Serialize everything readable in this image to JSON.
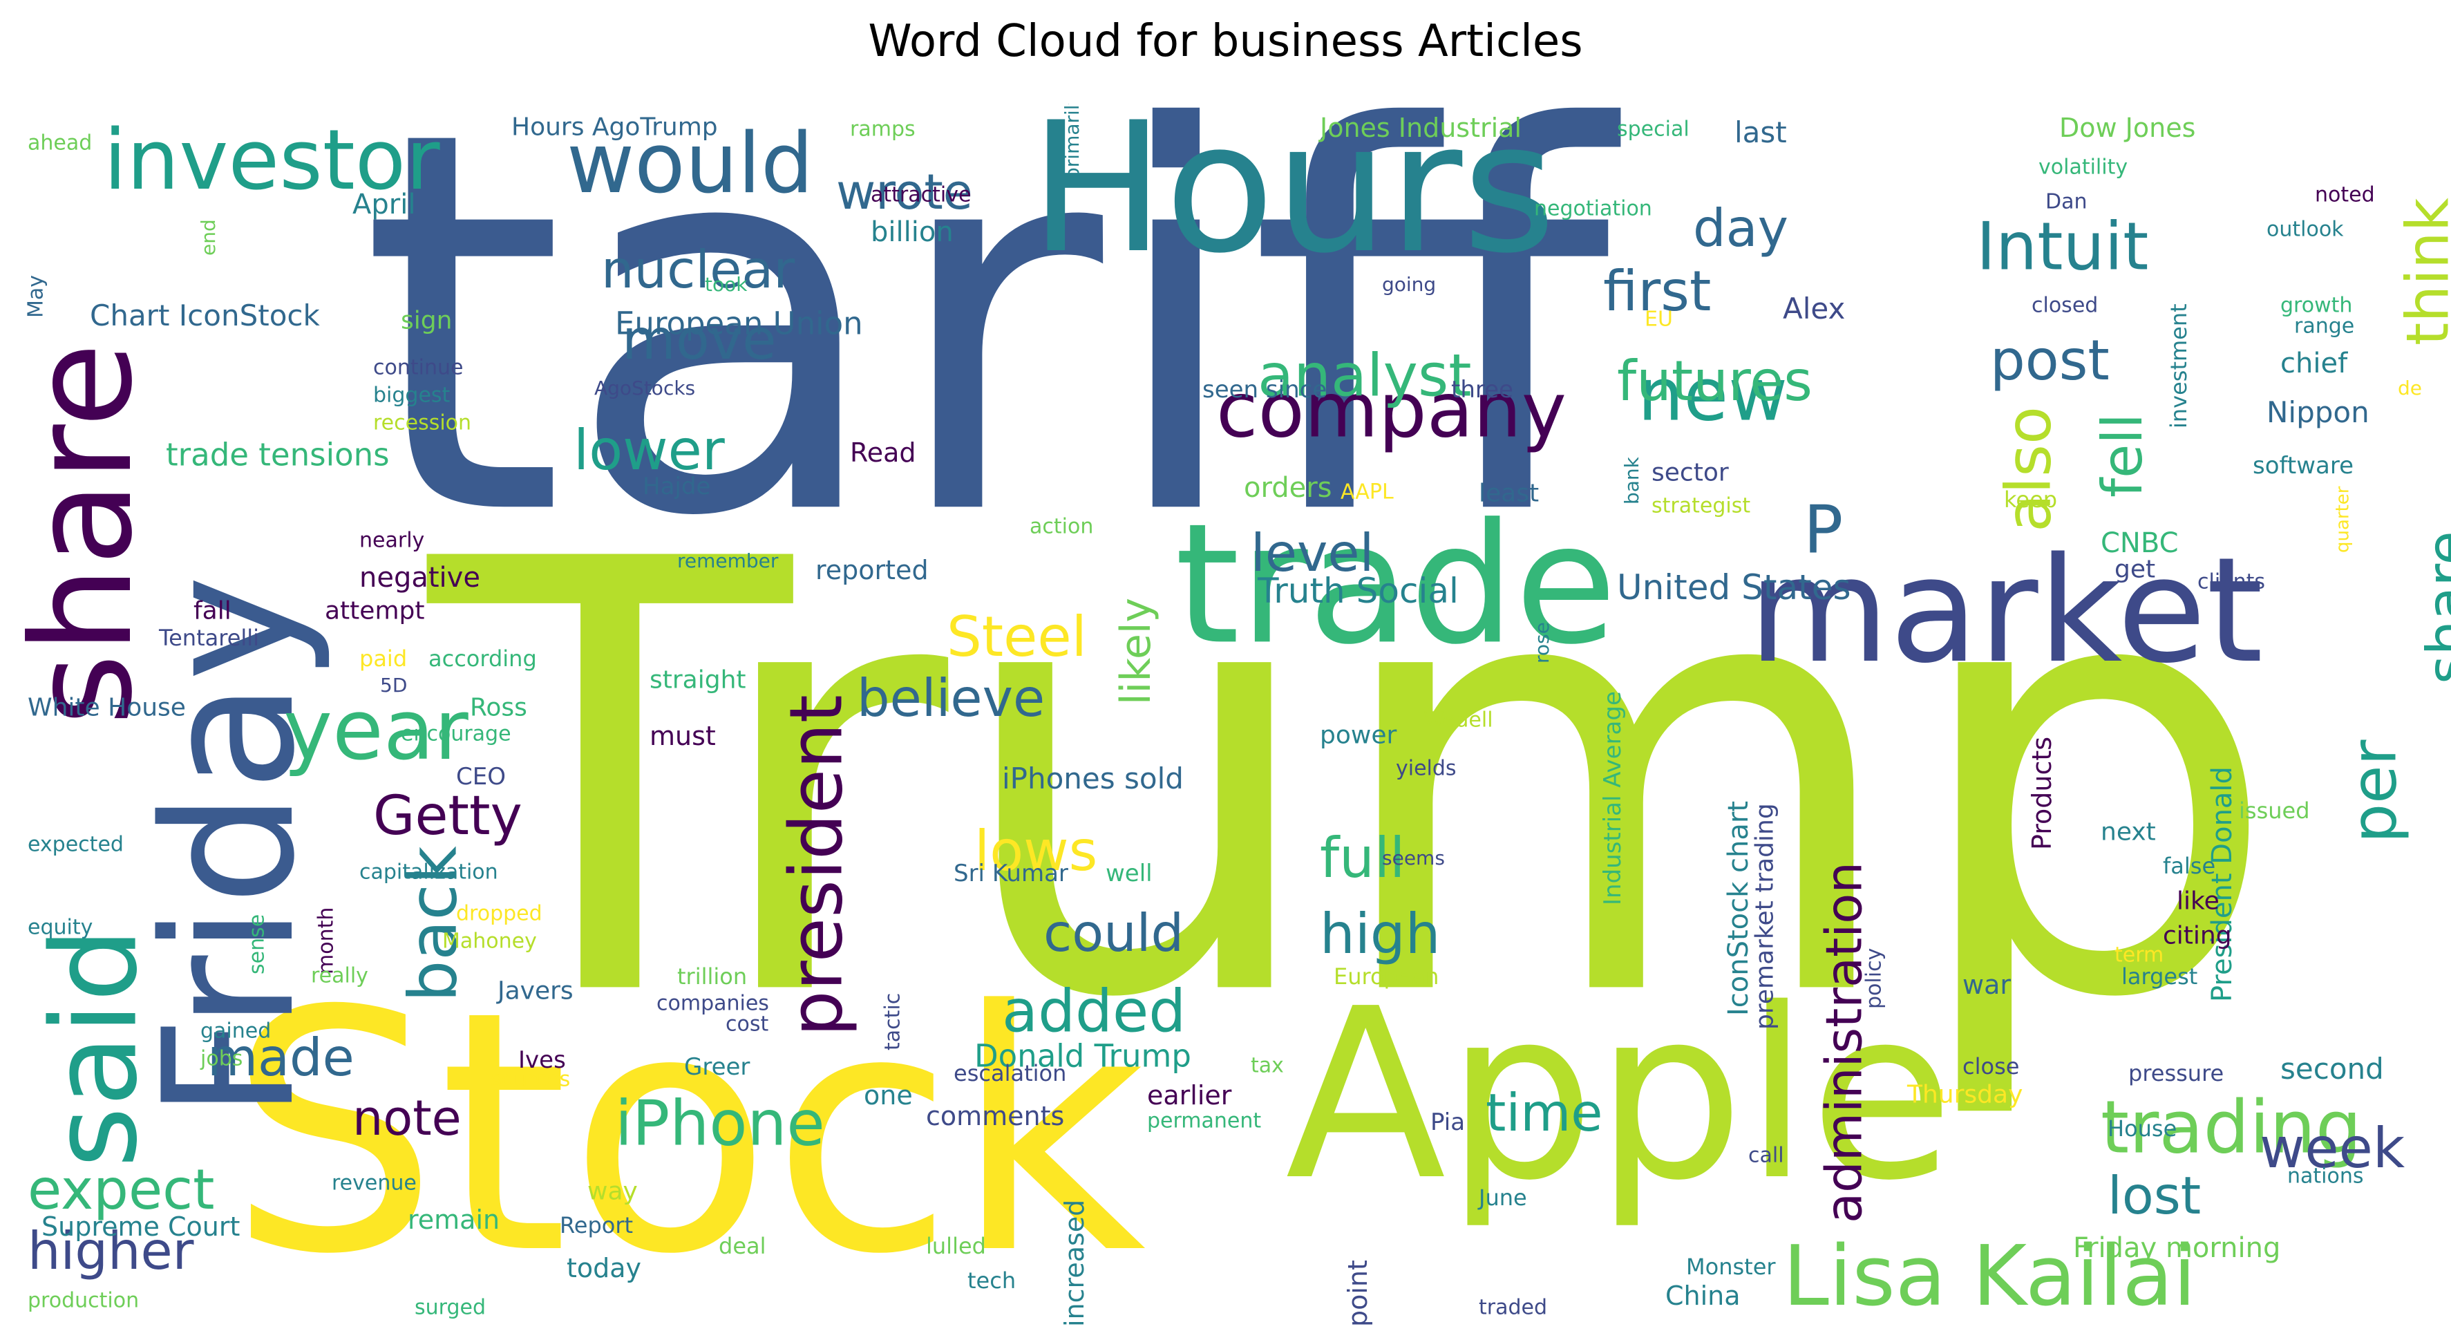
{
  "title": "Word Cloud for business Articles",
  "palette": {
    "dark_purple": "#440154",
    "indigo": "#3e4a89",
    "blue": "#31688e",
    "steel": "#3b5b8f",
    "teal": "#26828e",
    "teal_green": "#1f9e89",
    "green": "#35b779",
    "light_green": "#6ece58",
    "lime": "#b5de2b",
    "yellow": "#fde725"
  },
  "words": [
    {
      "text": "tariff",
      "color": "steel"
    },
    {
      "text": "Trump",
      "color": "lime"
    },
    {
      "text": "Stock",
      "color": "yellow"
    },
    {
      "text": "Apple",
      "color": "lime"
    },
    {
      "text": "Hours",
      "color": "teal"
    },
    {
      "text": "trade",
      "color": "green"
    },
    {
      "text": "market",
      "color": "indigo"
    },
    {
      "text": "Friday",
      "color": "steel"
    },
    {
      "text": "share",
      "color": "dark_purple"
    },
    {
      "text": "said",
      "color": "teal_green"
    },
    {
      "text": "investor",
      "color": "teal_green"
    },
    {
      "text": "would",
      "color": "blue"
    },
    {
      "text": "company",
      "color": "dark_purple"
    },
    {
      "text": "Lisa Kailai",
      "color": "light_green"
    },
    {
      "text": "trading",
      "color": "light_green"
    },
    {
      "text": "president",
      "color": "dark_purple"
    },
    {
      "text": "administration",
      "color": "dark_purple"
    },
    {
      "text": "year",
      "color": "green"
    },
    {
      "text": "Getty",
      "color": "dark_purple"
    },
    {
      "text": "back",
      "color": "teal"
    },
    {
      "text": "iPhone",
      "color": "green"
    },
    {
      "text": "new",
      "color": "teal_green"
    },
    {
      "text": "Intuit",
      "color": "teal"
    },
    {
      "text": "post",
      "color": "blue"
    },
    {
      "text": "also",
      "color": "lime"
    },
    {
      "text": "fell",
      "color": "green"
    },
    {
      "text": "think",
      "color": "lime"
    },
    {
      "text": "per",
      "color": "teal_green"
    },
    {
      "text": "share",
      "color": "teal_green"
    },
    {
      "text": "P",
      "color": "blue"
    },
    {
      "text": "nuclear",
      "color": "blue"
    },
    {
      "text": "wrote",
      "color": "blue"
    },
    {
      "text": "day",
      "color": "blue"
    },
    {
      "text": "first",
      "color": "blue"
    },
    {
      "text": "move",
      "color": "blue"
    },
    {
      "text": "analyst",
      "color": "green"
    },
    {
      "text": "futures",
      "color": "green"
    },
    {
      "text": "lower",
      "color": "teal_green"
    },
    {
      "text": "level",
      "color": "blue"
    },
    {
      "text": "Steel",
      "color": "yellow"
    },
    {
      "text": "believe",
      "color": "blue"
    },
    {
      "text": "lows",
      "color": "yellow"
    },
    {
      "text": "full",
      "color": "green"
    },
    {
      "text": "high",
      "color": "teal"
    },
    {
      "text": "could",
      "color": "blue"
    },
    {
      "text": "added",
      "color": "teal_green"
    },
    {
      "text": "made",
      "color": "blue"
    },
    {
      "text": "note",
      "color": "dark_purple"
    },
    {
      "text": "expect",
      "color": "green"
    },
    {
      "text": "higher",
      "color": "indigo"
    },
    {
      "text": "time",
      "color": "teal_green"
    },
    {
      "text": "week",
      "color": "indigo"
    },
    {
      "text": "lost",
      "color": "teal"
    },
    {
      "text": "likely",
      "color": "light_green"
    },
    {
      "text": "Truth Social",
      "color": "teal"
    },
    {
      "text": "United States",
      "color": "blue"
    },
    {
      "text": "Donald Trump",
      "color": "teal_green"
    },
    {
      "text": "European Union",
      "color": "blue"
    },
    {
      "text": "Chart IconStock",
      "color": "blue"
    },
    {
      "text": "trade tensions",
      "color": "green"
    },
    {
      "text": "Hours AgoTrump",
      "color": "blue"
    },
    {
      "text": "Jones Industrial",
      "color": "light_green"
    },
    {
      "text": "Dow Jones",
      "color": "light_green"
    },
    {
      "text": "last",
      "color": "blue"
    },
    {
      "text": "April",
      "color": "teal"
    },
    {
      "text": "billion",
      "color": "teal"
    },
    {
      "text": "attractive",
      "color": "dark_purple"
    },
    {
      "text": "ahead",
      "color": "light_green"
    },
    {
      "text": "ramps",
      "color": "light_green"
    },
    {
      "text": "special",
      "color": "green"
    },
    {
      "text": "negotiation",
      "color": "green"
    },
    {
      "text": "volatility",
      "color": "green"
    },
    {
      "text": "noted",
      "color": "dark_purple"
    },
    {
      "text": "outlook",
      "color": "teal"
    },
    {
      "text": "Dan",
      "color": "indigo"
    },
    {
      "text": "primarily",
      "color": "teal"
    },
    {
      "text": "took",
      "color": "green"
    },
    {
      "text": "going",
      "color": "indigo"
    },
    {
      "text": "EU",
      "color": "yellow"
    },
    {
      "text": "Alex",
      "color": "indigo"
    },
    {
      "text": "closed",
      "color": "indigo"
    },
    {
      "text": "growth",
      "color": "green"
    },
    {
      "text": "range",
      "color": "teal"
    },
    {
      "text": "chief",
      "color": "teal"
    },
    {
      "text": "Nippon",
      "color": "blue"
    },
    {
      "text": "software",
      "color": "teal"
    },
    {
      "text": "investment",
      "color": "teal"
    },
    {
      "text": "de",
      "color": "yellow"
    },
    {
      "text": "May",
      "color": "blue"
    },
    {
      "text": "end",
      "color": "light_green"
    },
    {
      "text": "sign",
      "color": "light_green"
    },
    {
      "text": "continue",
      "color": "indigo"
    },
    {
      "text": "biggest",
      "color": "teal"
    },
    {
      "text": "recession",
      "color": "lime"
    },
    {
      "text": "AgoStocks",
      "color": "indigo"
    },
    {
      "text": "Read",
      "color": "dark_purple"
    },
    {
      "text": "Hajde",
      "color": "blue"
    },
    {
      "text": "seen since",
      "color": "blue"
    },
    {
      "text": "three",
      "color": "indigo"
    },
    {
      "text": "orders",
      "color": "light_green"
    },
    {
      "text": "AAPL",
      "color": "yellow"
    },
    {
      "text": "least",
      "color": "blue"
    },
    {
      "text": "bank",
      "color": "teal"
    },
    {
      "text": "sector",
      "color": "indigo"
    },
    {
      "text": "strategist",
      "color": "lime"
    },
    {
      "text": "keep",
      "color": "lime"
    },
    {
      "text": "quarter",
      "color": "yellow"
    },
    {
      "text": "action",
      "color": "light_green"
    },
    {
      "text": "nearly",
      "color": "dark_purple"
    },
    {
      "text": "negative",
      "color": "dark_purple"
    },
    {
      "text": "remember",
      "color": "teal"
    },
    {
      "text": "reported",
      "color": "blue"
    },
    {
      "text": "CNBC",
      "color": "green"
    },
    {
      "text": "get",
      "color": "indigo"
    },
    {
      "text": "clients",
      "color": "indigo"
    },
    {
      "text": "fall",
      "color": "dark_purple"
    },
    {
      "text": "attempt",
      "color": "dark_purple"
    },
    {
      "text": "Tentarelli",
      "color": "indigo"
    },
    {
      "text": "paid",
      "color": "yellow"
    },
    {
      "text": "according",
      "color": "green"
    },
    {
      "text": "5D",
      "color": "indigo"
    },
    {
      "text": "rose",
      "color": "teal"
    },
    {
      "text": "straight",
      "color": "green"
    },
    {
      "text": "Ross",
      "color": "green"
    },
    {
      "text": "White House",
      "color": "blue"
    },
    {
      "text": "encourage",
      "color": "green"
    },
    {
      "text": "must",
      "color": "dark_purple"
    },
    {
      "text": "power",
      "color": "teal"
    },
    {
      "text": "Wedell",
      "color": "lime"
    },
    {
      "text": "yields",
      "color": "indigo"
    },
    {
      "text": "CEO",
      "color": "indigo"
    },
    {
      "text": "iPhones sold",
      "color": "blue"
    },
    {
      "text": "Industrial Average",
      "color": "green"
    },
    {
      "text": "Products",
      "color": "dark_purple"
    },
    {
      "text": "President Donald",
      "color": "teal_green"
    },
    {
      "text": "issued",
      "color": "light_green"
    },
    {
      "text": "next",
      "color": "teal"
    },
    {
      "text": "expected",
      "color": "teal"
    },
    {
      "text": "capitalization",
      "color": "teal"
    },
    {
      "text": "Sri Kumar",
      "color": "blue"
    },
    {
      "text": "well",
      "color": "green"
    },
    {
      "text": "seems",
      "color": "indigo"
    },
    {
      "text": "IconStock chart",
      "color": "teal"
    },
    {
      "text": "premarket trading",
      "color": "indigo"
    },
    {
      "text": "false",
      "color": "teal"
    },
    {
      "text": "like",
      "color": "dark_purple"
    },
    {
      "text": "dropped",
      "color": "yellow"
    },
    {
      "text": "Mahoney",
      "color": "lime"
    },
    {
      "text": "month",
      "color": "dark_purple"
    },
    {
      "text": "equity",
      "color": "teal"
    },
    {
      "text": "citing",
      "color": "dark_purple"
    },
    {
      "text": "term",
      "color": "yellow"
    },
    {
      "text": "largest",
      "color": "teal"
    },
    {
      "text": "sense",
      "color": "green"
    },
    {
      "text": "really",
      "color": "light_green"
    },
    {
      "text": "trillion",
      "color": "light_green"
    },
    {
      "text": "European",
      "color": "lime"
    },
    {
      "text": "policy",
      "color": "indigo"
    },
    {
      "text": "war",
      "color": "blue"
    },
    {
      "text": "Javers",
      "color": "blue"
    },
    {
      "text": "companies",
      "color": "indigo"
    },
    {
      "text": "cost",
      "color": "indigo"
    },
    {
      "text": "tactic",
      "color": "indigo"
    },
    {
      "text": "gained",
      "color": "teal"
    },
    {
      "text": "jobs",
      "color": "light_green"
    },
    {
      "text": "Ives",
      "color": "dark_purple"
    },
    {
      "text": "sources",
      "color": "yellow"
    },
    {
      "text": "Greer",
      "color": "teal"
    },
    {
      "text": "escalation",
      "color": "indigo"
    },
    {
      "text": "one",
      "color": "teal"
    },
    {
      "text": "comments",
      "color": "indigo"
    },
    {
      "text": "earlier",
      "color": "dark_purple"
    },
    {
      "text": "tax",
      "color": "light_green"
    },
    {
      "text": "permanent",
      "color": "green"
    },
    {
      "text": "close",
      "color": "indigo"
    },
    {
      "text": "Thursday",
      "color": "yellow"
    },
    {
      "text": "pressure",
      "color": "indigo"
    },
    {
      "text": "second",
      "color": "teal"
    },
    {
      "text": "call",
      "color": "indigo"
    },
    {
      "text": "House",
      "color": "teal"
    },
    {
      "text": "Pia",
      "color": "indigo"
    },
    {
      "text": "nations",
      "color": "teal"
    },
    {
      "text": "revenue",
      "color": "teal"
    },
    {
      "text": "remain",
      "color": "green"
    },
    {
      "text": "way",
      "color": "lime"
    },
    {
      "text": "Report",
      "color": "blue"
    },
    {
      "text": "June",
      "color": "teal"
    },
    {
      "text": "point",
      "color": "indigo"
    },
    {
      "text": "Friday morning",
      "color": "light_green"
    },
    {
      "text": "Supreme Court",
      "color": "teal"
    },
    {
      "text": "deal",
      "color": "light_green"
    },
    {
      "text": "lulled",
      "color": "light_green"
    },
    {
      "text": "today",
      "color": "teal"
    },
    {
      "text": "tech",
      "color": "teal"
    },
    {
      "text": "increased",
      "color": "teal"
    },
    {
      "text": "Monster",
      "color": "teal"
    },
    {
      "text": "China",
      "color": "teal"
    },
    {
      "text": "production",
      "color": "light_green"
    },
    {
      "text": "surged",
      "color": "green"
    },
    {
      "text": "traded",
      "color": "indigo"
    }
  ]
}
